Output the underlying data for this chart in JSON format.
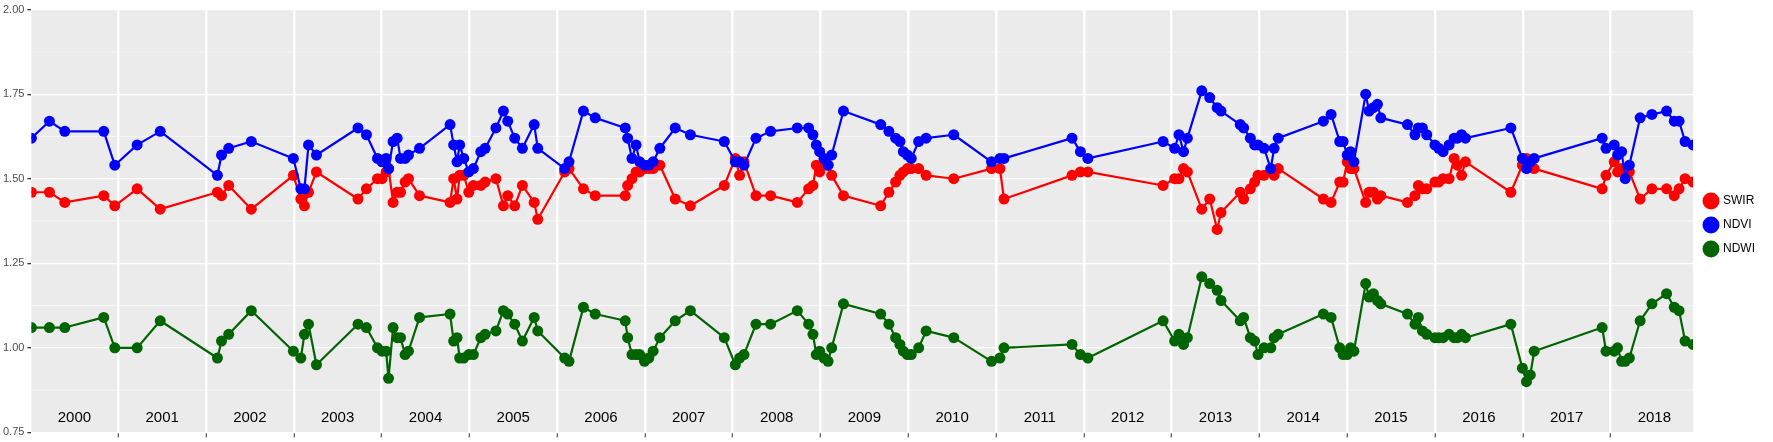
{
  "chart_data": {
    "type": "line",
    "marker": "circle",
    "line_style": "solid",
    "grid": true,
    "legend": "right",
    "x": [
      "2000-01-05",
      "2000-03-20",
      "2000-05-23",
      "2000-11-01",
      "2000-12-17",
      "2001-03-20",
      "2001-06-24",
      "2002-02-17",
      "2002-03-06",
      "2002-04-05",
      "2002-07-08",
      "2002-12-30",
      "2003-01-30",
      "2003-02-14",
      "2003-03-03",
      "2003-04-05",
      "2003-09-25",
      "2003-10-30",
      "2003-12-15",
      "2004-01-03",
      "2004-01-20",
      "2004-01-30",
      "2004-02-18",
      "2004-03-06",
      "2004-03-20",
      "2004-04-08",
      "2004-04-22",
      "2004-06-07",
      "2004-10-12",
      "2004-10-27",
      "2004-11-10",
      "2004-11-21",
      "2004-12-08",
      "2004-12-29",
      "2005-01-17",
      "2005-02-17",
      "2005-03-07",
      "2005-04-21",
      "2005-05-22",
      "2005-06-09",
      "2005-07-08",
      "2005-08-09",
      "2005-09-27",
      "2005-10-12",
      "2006-02-01",
      "2006-02-19",
      "2006-04-20",
      "2006-06-08",
      "2006-10-11",
      "2006-10-21",
      "2006-11-08",
      "2006-11-25",
      "2006-12-10",
      "2006-12-30",
      "2007-01-17",
      "2007-02-04",
      "2007-03-04",
      "2007-05-07",
      "2007-07-09",
      "2007-11-27",
      "2008-01-12",
      "2008-01-30",
      "2008-02-17",
      "2008-04-07",
      "2008-06-07",
      "2008-09-26",
      "2008-11-12",
      "2008-11-30",
      "2008-12-14",
      "2008-12-28",
      "2009-01-15",
      "2009-02-01",
      "2009-02-16",
      "2009-04-06",
      "2009-09-08",
      "2009-10-12",
      "2009-11-09",
      "2009-11-27",
      "2009-12-11",
      "2009-12-28",
      "2010-01-13",
      "2010-02-13",
      "2010-03-16",
      "2010-07-09",
      "2010-12-13",
      "2011-01-17",
      "2011-02-03",
      "2011-11-13",
      "2011-12-18",
      "2012-01-18",
      "2012-11-26",
      "2013-01-13",
      "2013-01-31",
      "2013-02-19",
      "2013-03-07",
      "2013-05-06",
      "2013-06-08",
      "2013-07-09",
      "2013-07-25",
      "2013-10-13",
      "2013-10-27",
      "2013-11-24",
      "2013-12-12",
      "2013-12-26",
      "2014-01-20",
      "2014-02-17",
      "2014-03-03",
      "2014-03-20",
      "2014-09-24",
      "2014-10-26",
      "2014-12-01",
      "2014-12-15",
      "2015-01-01",
      "2015-01-15",
      "2015-01-29",
      "2015-03-19",
      "2015-04-02",
      "2015-04-20",
      "2015-05-07",
      "2015-05-21",
      "2015-09-09",
      "2015-10-10",
      "2015-10-24",
      "2015-11-10",
      "2015-11-28",
      "2016-01-01",
      "2016-01-17",
      "2016-02-04",
      "2016-02-29",
      "2016-03-21",
      "2016-04-04",
      "2016-04-21",
      "2016-05-07",
      "2016-11-12",
      "2016-12-30",
      "2017-01-16",
      "2017-02-01",
      "2017-02-17",
      "2017-11-27",
      "2017-12-13",
      "2018-01-16",
      "2018-01-30",
      "2018-02-16",
      "2018-03-03",
      "2018-03-20",
      "2018-05-04",
      "2018-06-22",
      "2018-08-22",
      "2018-09-23",
      "2018-10-13",
      "2018-11-07",
      "2018-12-10"
    ],
    "series": [
      {
        "name": "SWIR",
        "color": "#ff0000",
        "values": [
          1.46,
          1.46,
          1.43,
          1.45,
          1.42,
          1.47,
          1.41,
          1.46,
          1.45,
          1.48,
          1.41,
          1.51,
          1.44,
          1.42,
          1.46,
          1.52,
          1.44,
          1.47,
          1.5,
          1.5,
          1.52,
          1.53,
          1.43,
          1.46,
          1.46,
          1.49,
          1.5,
          1.45,
          1.43,
          1.5,
          1.44,
          1.51,
          1.51,
          1.46,
          1.48,
          1.48,
          1.49,
          1.5,
          1.42,
          1.45,
          1.42,
          1.48,
          1.43,
          1.38,
          1.52,
          1.53,
          1.47,
          1.45,
          1.45,
          1.48,
          1.5,
          1.52,
          1.52,
          1.53,
          1.53,
          1.53,
          1.54,
          1.44,
          1.42,
          1.48,
          1.56,
          1.51,
          1.55,
          1.45,
          1.45,
          1.43,
          1.47,
          1.48,
          1.54,
          1.52,
          1.54,
          1.54,
          1.51,
          1.45,
          1.42,
          1.46,
          1.49,
          1.51,
          1.52,
          1.53,
          1.53,
          1.53,
          1.51,
          1.5,
          1.53,
          1.53,
          1.44,
          1.51,
          1.52,
          1.52,
          1.48,
          1.5,
          1.5,
          1.53,
          1.52,
          1.41,
          1.44,
          1.35,
          1.4,
          1.46,
          1.44,
          1.47,
          1.49,
          1.51,
          1.51,
          1.52,
          1.51,
          1.53,
          1.44,
          1.43,
          1.49,
          1.49,
          1.55,
          1.53,
          1.53,
          1.43,
          1.46,
          1.46,
          1.44,
          1.45,
          1.43,
          1.45,
          1.48,
          1.47,
          1.47,
          1.49,
          1.49,
          1.5,
          1.5,
          1.56,
          1.54,
          1.51,
          1.55,
          1.46,
          1.54,
          1.56,
          1.55,
          1.53,
          1.47,
          1.51,
          1.55,
          1.52,
          1.53,
          1.52,
          1.52,
          1.44,
          1.47,
          1.47,
          1.45,
          1.47,
          1.5,
          1.49
        ]
      },
      {
        "name": "NDVI",
        "color": "#0000ff",
        "values": [
          1.62,
          1.67,
          1.64,
          1.64,
          1.54,
          1.6,
          1.64,
          1.51,
          1.57,
          1.59,
          1.61,
          1.56,
          1.47,
          1.47,
          1.6,
          1.57,
          1.65,
          1.63,
          1.56,
          1.55,
          1.56,
          1.53,
          1.61,
          1.62,
          1.56,
          1.56,
          1.57,
          1.59,
          1.66,
          1.6,
          1.55,
          1.6,
          1.56,
          1.52,
          1.53,
          1.58,
          1.59,
          1.65,
          1.7,
          1.67,
          1.62,
          1.59,
          1.66,
          1.59,
          1.53,
          1.55,
          1.7,
          1.68,
          1.65,
          1.62,
          1.56,
          1.6,
          1.55,
          1.54,
          1.54,
          1.55,
          1.59,
          1.65,
          1.63,
          1.61,
          1.55,
          1.55,
          1.54,
          1.62,
          1.64,
          1.65,
          1.65,
          1.63,
          1.6,
          1.58,
          1.56,
          1.54,
          1.57,
          1.7,
          1.66,
          1.64,
          1.62,
          1.61,
          1.58,
          1.57,
          1.56,
          1.61,
          1.62,
          1.63,
          1.55,
          1.56,
          1.56,
          1.62,
          1.58,
          1.56,
          1.61,
          1.59,
          1.63,
          1.58,
          1.62,
          1.76,
          1.74,
          1.71,
          1.7,
          1.66,
          1.65,
          1.62,
          1.6,
          1.6,
          1.59,
          1.53,
          1.59,
          1.62,
          1.67,
          1.69,
          1.61,
          1.61,
          1.57,
          1.58,
          1.55,
          1.75,
          1.7,
          1.71,
          1.72,
          1.68,
          1.66,
          1.63,
          1.65,
          1.65,
          1.63,
          1.6,
          1.59,
          1.58,
          1.6,
          1.62,
          1.62,
          1.63,
          1.62,
          1.65,
          1.56,
          1.53,
          1.55,
          1.56,
          1.62,
          1.59,
          1.6,
          1.57,
          1.58,
          1.5,
          1.54,
          1.68,
          1.69,
          1.7,
          1.67,
          1.67,
          1.61,
          1.6
        ]
      },
      {
        "name": "NDWI",
        "color": "#006400",
        "values": [
          1.06,
          1.06,
          1.06,
          1.09,
          1.0,
          1.0,
          1.08,
          0.97,
          1.02,
          1.04,
          1.11,
          0.99,
          0.97,
          1.04,
          1.07,
          0.95,
          1.07,
          1.06,
          1.0,
          0.99,
          0.99,
          0.91,
          1.06,
          1.03,
          1.03,
          0.98,
          0.99,
          1.09,
          1.1,
          1.02,
          1.03,
          0.97,
          0.97,
          0.98,
          0.98,
          1.03,
          1.04,
          1.05,
          1.11,
          1.1,
          1.07,
          1.02,
          1.09,
          1.05,
          0.97,
          0.96,
          1.12,
          1.1,
          1.08,
          1.03,
          0.98,
          0.98,
          0.98,
          0.96,
          0.97,
          0.99,
          1.03,
          1.08,
          1.11,
          1.03,
          0.95,
          0.97,
          0.98,
          1.07,
          1.07,
          1.11,
          1.07,
          1.04,
          0.98,
          0.99,
          0.97,
          0.96,
          1.0,
          1.13,
          1.1,
          1.07,
          1.03,
          1.01,
          0.99,
          0.98,
          0.98,
          1.0,
          1.05,
          1.03,
          0.96,
          0.97,
          1.0,
          1.01,
          0.98,
          0.97,
          1.08,
          1.02,
          1.04,
          1.01,
          1.03,
          1.21,
          1.19,
          1.17,
          1.14,
          1.08,
          1.09,
          1.03,
          1.02,
          0.98,
          1.0,
          1.0,
          1.03,
          1.04,
          1.1,
          1.09,
          1.0,
          0.98,
          0.98,
          1.0,
          0.99,
          1.19,
          1.15,
          1.16,
          1.14,
          1.13,
          1.1,
          1.07,
          1.09,
          1.05,
          1.04,
          1.03,
          1.03,
          1.03,
          1.04,
          1.03,
          1.03,
          1.04,
          1.03,
          1.07,
          0.94,
          0.9,
          0.92,
          0.99,
          1.06,
          0.99,
          0.99,
          1.0,
          0.96,
          0.96,
          0.97,
          1.08,
          1.13,
          1.16,
          1.12,
          1.11,
          1.02,
          1.01
        ]
      }
    ],
    "xlim": [
      "2000-01-05",
      "2018-12-10"
    ],
    "xticks": [
      {
        "value": "2000-07-02",
        "label": "2000"
      },
      {
        "value": "2001-01-01",
        "label": null
      },
      {
        "value": "2001-07-02",
        "label": "2001"
      },
      {
        "value": "2002-01-01",
        "label": null
      },
      {
        "value": "2002-07-02",
        "label": "2002"
      },
      {
        "value": "2003-01-01",
        "label": null
      },
      {
        "value": "2003-07-02",
        "label": "2003"
      },
      {
        "value": "2004-01-01",
        "label": null
      },
      {
        "value": "2004-07-02",
        "label": "2004"
      },
      {
        "value": "2005-01-01",
        "label": null
      },
      {
        "value": "2005-07-02",
        "label": "2005"
      },
      {
        "value": "2006-01-01",
        "label": null
      },
      {
        "value": "2006-07-02",
        "label": "2006"
      },
      {
        "value": "2007-01-01",
        "label": null
      },
      {
        "value": "2007-07-02",
        "label": "2007"
      },
      {
        "value": "2008-01-01",
        "label": null
      },
      {
        "value": "2008-07-02",
        "label": "2008"
      },
      {
        "value": "2009-01-01",
        "label": null
      },
      {
        "value": "2009-07-02",
        "label": "2009"
      },
      {
        "value": "2010-01-01",
        "label": null
      },
      {
        "value": "2010-07-02",
        "label": "2010"
      },
      {
        "value": "2011-01-01",
        "label": null
      },
      {
        "value": "2011-07-02",
        "label": "2011"
      },
      {
        "value": "2012-01-01",
        "label": null
      },
      {
        "value": "2012-07-02",
        "label": "2012"
      },
      {
        "value": "2013-01-01",
        "label": null
      },
      {
        "value": "2013-07-02",
        "label": "2013"
      },
      {
        "value": "2014-01-01",
        "label": null
      },
      {
        "value": "2014-07-02",
        "label": "2014"
      },
      {
        "value": "2015-01-01",
        "label": null
      },
      {
        "value": "2015-07-02",
        "label": "2015"
      },
      {
        "value": "2016-01-01",
        "label": null
      },
      {
        "value": "2016-07-02",
        "label": "2016"
      },
      {
        "value": "2017-01-01",
        "label": null
      },
      {
        "value": "2017-07-02",
        "label": "2017"
      },
      {
        "value": "2018-01-01",
        "label": null
      },
      {
        "value": "2018-07-02",
        "label": "2018"
      }
    ],
    "ylim": [
      0.75,
      2.0
    ],
    "yticks": [
      {
        "value": 0.75,
        "label": "0.75"
      },
      {
        "value": 1.0,
        "label": "1.00"
      },
      {
        "value": 1.25,
        "label": "1.25"
      },
      {
        "value": 1.5,
        "label": "1.50"
      },
      {
        "value": 1.75,
        "label": "1.75"
      },
      {
        "value": 2.0,
        "label": "2.00"
      }
    ]
  }
}
